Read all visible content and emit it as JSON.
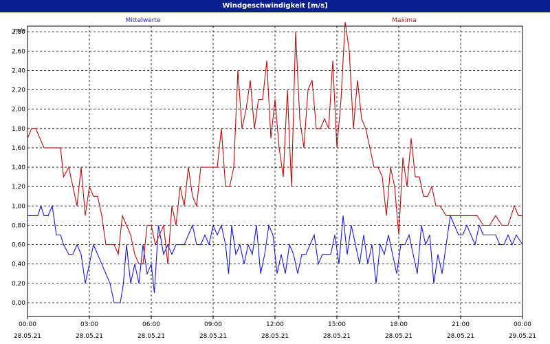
{
  "window": {
    "title": "Windgeschwindigkeit [m/s]"
  },
  "colors": {
    "titlebar": "#0a1f8f",
    "mittel": "#1a1acc",
    "maxima": "#b01010",
    "grid": "#000000"
  },
  "chart_data": {
    "type": "line",
    "ylabel": "m/s",
    "ylim": [
      0,
      3.0
    ],
    "y_ticks": [
      "0,00",
      "0,20",
      "0,40",
      "0,60",
      "0,80",
      "1,00",
      "1,20",
      "1,40",
      "1,60",
      "1,80",
      "2,00",
      "2,20",
      "2,40",
      "2,60",
      "2,80"
    ],
    "x_hours_range": [
      0,
      24
    ],
    "x_ticks": [
      {
        "time": "00:00",
        "date": "28.05.21"
      },
      {
        "time": "03:00",
        "date": "28.05.21"
      },
      {
        "time": "06:00",
        "date": "28.05.21"
      },
      {
        "time": "09:00",
        "date": "28.05.21"
      },
      {
        "time": "12:00",
        "date": "28.05.21"
      },
      {
        "time": "15:00",
        "date": "28.05.21"
      },
      {
        "time": "18:00",
        "date": "28.05.21"
      },
      {
        "time": "21:00",
        "date": "28.05.21"
      },
      {
        "time": "00:00",
        "date": "29.05.21"
      }
    ],
    "grid": true,
    "series": [
      {
        "name": "Mittelwerte",
        "color": "#1a1acc",
        "x_hours": [
          0,
          0.5,
          0.65,
          0.8,
          1.0,
          1.2,
          1.4,
          1.6,
          1.75,
          2.0,
          2.2,
          2.4,
          2.6,
          2.8,
          3.0,
          3.2,
          3.4,
          3.6,
          3.8,
          4.0,
          4.2,
          4.5,
          4.65,
          4.8,
          5.0,
          5.2,
          5.4,
          5.6,
          5.8,
          6.0,
          6.15,
          6.35,
          6.6,
          6.8,
          7.0,
          7.2,
          7.4,
          7.6,
          7.8,
          8.0,
          8.2,
          8.4,
          8.6,
          8.8,
          9.0,
          9.2,
          9.4,
          9.6,
          9.75,
          9.9,
          10.1,
          10.3,
          10.5,
          10.7,
          10.9,
          11.1,
          11.3,
          11.5,
          11.7,
          11.9,
          12.1,
          12.3,
          12.5,
          12.7,
          12.9,
          13.1,
          13.3,
          13.5,
          13.7,
          13.9,
          14.1,
          14.3,
          14.5,
          14.7,
          14.9,
          15.1,
          15.3,
          15.5,
          15.7,
          15.9,
          16.1,
          16.3,
          16.5,
          16.7,
          16.9,
          17.1,
          17.3,
          17.5,
          17.7,
          17.9,
          18.1,
          18.3,
          18.5,
          18.7,
          18.9,
          19.1,
          19.3,
          19.5,
          19.7,
          19.9,
          20.1,
          20.3,
          20.5,
          20.7,
          20.9,
          21.1,
          21.3,
          21.5,
          21.7,
          21.9,
          22.1,
          22.3,
          22.5,
          22.7,
          22.9,
          23.1,
          23.3,
          23.5,
          23.7,
          24.0
        ],
        "values": [
          0.9,
          0.9,
          1.0,
          0.9,
          0.9,
          1.0,
          0.7,
          0.7,
          0.6,
          0.5,
          0.5,
          0.6,
          0.5,
          0.2,
          0.4,
          0.6,
          0.5,
          0.4,
          0.3,
          0.2,
          0.0,
          0.0,
          0.2,
          0.6,
          0.2,
          0.4,
          0.2,
          0.6,
          0.3,
          0.4,
          0.1,
          0.8,
          0.5,
          0.6,
          0.5,
          0.6,
          0.6,
          0.6,
          0.7,
          0.8,
          0.6,
          0.6,
          0.7,
          0.6,
          0.8,
          0.7,
          0.8,
          0.6,
          0.3,
          0.8,
          0.5,
          0.6,
          0.4,
          0.6,
          0.5,
          0.8,
          0.3,
          0.5,
          0.8,
          0.7,
          0.3,
          0.5,
          0.3,
          0.6,
          0.5,
          0.3,
          0.5,
          0.5,
          0.6,
          0.7,
          0.4,
          0.5,
          0.5,
          0.5,
          0.7,
          0.4,
          0.9,
          0.5,
          0.8,
          0.6,
          0.4,
          0.7,
          0.4,
          0.6,
          0.2,
          0.6,
          0.5,
          0.7,
          0.5,
          0.3,
          0.6,
          0.6,
          0.7,
          0.5,
          0.3,
          0.8,
          0.6,
          0.7,
          0.2,
          0.5,
          0.3,
          0.6,
          0.9,
          0.8,
          0.7,
          0.7,
          0.8,
          0.7,
          0.6,
          0.8,
          0.7,
          0.7,
          0.7,
          0.7,
          0.6,
          0.6,
          0.7,
          0.6,
          0.7,
          0.6
        ]
      },
      {
        "name": "Maxima",
        "color": "#b01010",
        "x_hours": [
          0,
          0.2,
          0.4,
          0.6,
          0.8,
          1.0,
          1.2,
          1.4,
          1.6,
          1.75,
          2.0,
          2.2,
          2.4,
          2.6,
          2.8,
          3.0,
          3.2,
          3.4,
          3.6,
          3.8,
          4.0,
          4.2,
          4.4,
          4.6,
          4.8,
          5.0,
          5.2,
          5.4,
          5.6,
          5.8,
          6.0,
          6.2,
          6.4,
          6.6,
          6.8,
          7.0,
          7.2,
          7.4,
          7.6,
          7.8,
          8.0,
          8.2,
          8.4,
          8.6,
          8.8,
          9.0,
          9.2,
          9.4,
          9.6,
          9.8,
          10.0,
          10.2,
          10.4,
          10.6,
          10.8,
          11.0,
          11.2,
          11.4,
          11.6,
          11.8,
          12.0,
          12.2,
          12.4,
          12.6,
          12.8,
          13.0,
          13.2,
          13.4,
          13.6,
          13.8,
          14.0,
          14.2,
          14.4,
          14.6,
          14.8,
          15.0,
          15.2,
          15.4,
          15.6,
          15.8,
          16.0,
          16.2,
          16.4,
          16.6,
          16.8,
          17.0,
          17.2,
          17.4,
          17.6,
          17.8,
          18.0,
          18.2,
          18.4,
          18.6,
          18.8,
          19.0,
          19.2,
          19.4,
          19.6,
          19.8,
          20.0,
          20.3,
          20.6,
          20.9,
          21.2,
          21.5,
          21.8,
          22.1,
          22.4,
          22.7,
          23.0,
          23.3,
          23.6,
          23.8,
          24.0
        ],
        "values": [
          1.7,
          1.8,
          1.8,
          1.7,
          1.6,
          1.6,
          1.6,
          1.6,
          1.6,
          1.3,
          1.4,
          1.2,
          1.0,
          1.4,
          0.9,
          1.2,
          1.1,
          1.1,
          0.9,
          0.6,
          0.6,
          0.6,
          0.5,
          0.9,
          0.8,
          0.7,
          0.5,
          0.4,
          0.4,
          0.8,
          0.8,
          0.6,
          0.7,
          0.8,
          0.4,
          1.0,
          0.8,
          1.2,
          1.0,
          1.4,
          1.1,
          1.0,
          1.4,
          1.4,
          1.4,
          1.4,
          1.4,
          1.8,
          1.2,
          1.2,
          1.4,
          2.4,
          1.8,
          2.0,
          2.3,
          1.8,
          2.1,
          2.1,
          2.5,
          1.7,
          2.1,
          1.6,
          1.3,
          2.2,
          1.2,
          2.8,
          1.9,
          1.6,
          2.2,
          2.3,
          1.8,
          1.8,
          1.9,
          1.8,
          2.5,
          1.6,
          2.1,
          2.9,
          2.6,
          1.8,
          2.3,
          1.9,
          1.8,
          1.6,
          1.4,
          1.4,
          1.3,
          0.9,
          1.4,
          1.2,
          0.7,
          1.5,
          1.2,
          1.7,
          1.3,
          1.3,
          1.1,
          1.1,
          1.2,
          1.0,
          1.0,
          0.9,
          0.9,
          0.9,
          0.9,
          0.9,
          0.9,
          0.8,
          0.8,
          0.9,
          0.8,
          0.8,
          1.0,
          0.9,
          0.9
        ]
      }
    ]
  }
}
